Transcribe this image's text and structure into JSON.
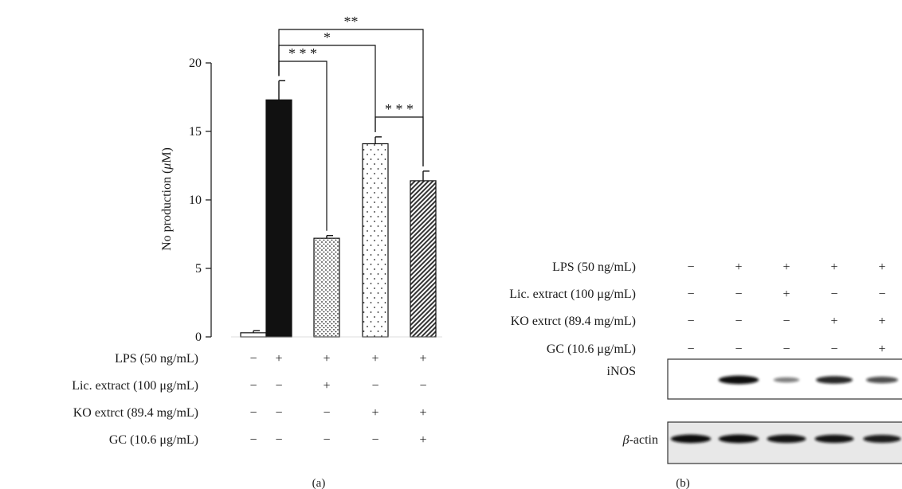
{
  "chart_data": [
    {
      "panel": "(a)",
      "type": "bar",
      "ylabel_pre": "No production (",
      "ylabel_mu": "μ",
      "ylabel_post": "M)",
      "ylim": [
        0,
        20
      ],
      "yticks": [
        "0",
        "5",
        "10",
        "15",
        "20"
      ],
      "grid": false,
      "bars": [
        {
          "value": 0.3,
          "error": 0.15,
          "fill": "white"
        },
        {
          "value": 17.3,
          "error": 1.4,
          "fill": "black"
        },
        {
          "value": 7.2,
          "error": 0.2,
          "fill": "dense-dots"
        },
        {
          "value": 14.1,
          "error": 0.5,
          "fill": "sparse-dots"
        },
        {
          "value": 11.4,
          "error": 0.7,
          "fill": "diagonal-hatch"
        }
      ],
      "conditions": [
        {
          "label": "LPS (50 ng/mL)",
          "signs": [
            "−",
            "+",
            "+",
            "+",
            "+"
          ]
        },
        {
          "label": "Lic. extract (100  μg/mL)",
          "signs": [
            "−",
            "−",
            "+",
            "−",
            "−"
          ]
        },
        {
          "label": "KO extrct (89.4  mg/mL)",
          "signs": [
            "−",
            "−",
            "−",
            "+",
            "+"
          ]
        },
        {
          "label": "GC (10.6 μg/mL)",
          "signs": [
            "−",
            "−",
            "−",
            "−",
            "+"
          ]
        }
      ],
      "significance": [
        {
          "from": 2,
          "to": 5,
          "label": "**"
        },
        {
          "from": 2,
          "to": 4,
          "label": "*"
        },
        {
          "from": 2,
          "to": 3,
          "label": "* * *"
        },
        {
          "from": 4,
          "to": 5,
          "label": "* * *"
        }
      ]
    },
    {
      "panel": "(b)",
      "type": "table",
      "conditions": [
        {
          "label": "LPS (50 ng/mL)",
          "signs": [
            "−",
            "+",
            "+",
            "+",
            "+"
          ]
        },
        {
          "label": "Lic. extract (100  μg/mL)",
          "signs": [
            "−",
            "−",
            "+",
            "−",
            "−"
          ]
        },
        {
          "label": "KO extrct (89.4  mg/mL)",
          "signs": [
            "−",
            "−",
            "−",
            "+",
            "+"
          ]
        },
        {
          "label": "GC (10.6 μg/mL)",
          "signs": [
            "−",
            "−",
            "−",
            "−",
            "+"
          ]
        }
      ],
      "blots": [
        {
          "label": "iNOS",
          "band_intensity": [
            0,
            0.95,
            0.35,
            0.8,
            0.6
          ]
        },
        {
          "label_greek": "β",
          "label_rest": "-actin",
          "band_intensity": [
            0.95,
            0.95,
            0.9,
            0.9,
            0.85
          ]
        }
      ]
    }
  ]
}
